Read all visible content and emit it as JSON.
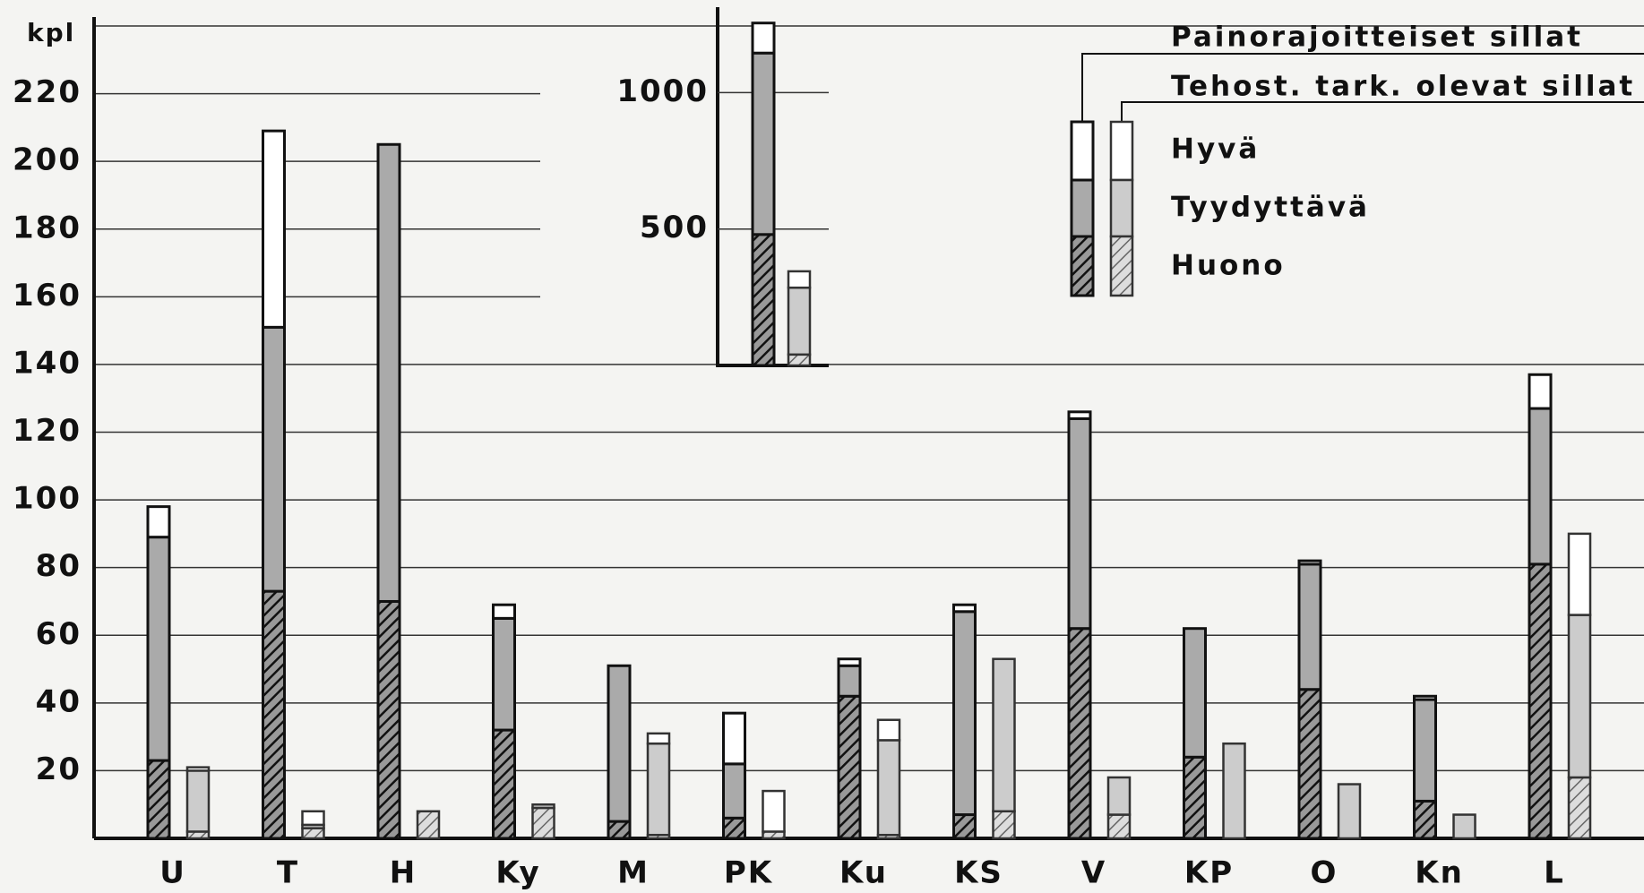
{
  "chart_data": [
    {
      "type": "bar",
      "y_label": "kpl",
      "categories": [
        "U",
        "T",
        "H",
        "Ky",
        "M",
        "PK",
        "Ku",
        "KS",
        "V",
        "KP",
        "O",
        "Kn",
        "L"
      ],
      "stack_names": [
        "Huono",
        "Tyydyttävä",
        "Hyvä"
      ],
      "groups": [
        {
          "name": "Painorajoitteiset sillat",
          "stacks": [
            [
              23,
              73,
              70,
              32,
              5,
              6,
              42,
              7,
              62,
              24,
              44,
              11,
              81
            ],
            [
              66,
              78,
              135,
              33,
              46,
              16,
              9,
              60,
              62,
              38,
              37,
              30,
              46
            ],
            [
              9,
              58,
              0,
              4,
              0,
              15,
              2,
              2,
              2,
              0,
              1,
              1,
              10
            ]
          ]
        },
        {
          "name": "Tehost. tark. olevat sillat",
          "stacks": [
            [
              2,
              3,
              8,
              9,
              1,
              2,
              1,
              8,
              7,
              0,
              0,
              0,
              18
            ],
            [
              18,
              1,
              0,
              1,
              27,
              0,
              28,
              45,
              11,
              28,
              16,
              7,
              48
            ],
            [
              1,
              4,
              0,
              0,
              3,
              12,
              6,
              0,
              0,
              0,
              0,
              0,
              24
            ]
          ]
        }
      ],
      "ylim": [
        0,
        240
      ],
      "yticks": [
        20,
        40,
        60,
        80,
        100,
        120,
        140,
        160,
        180,
        200,
        220
      ],
      "grid": true
    },
    {
      "type": "bar",
      "groups": [
        {
          "stacks": [
            [
              480
            ],
            [
              665
            ],
            [
              110
            ]
          ]
        },
        {
          "stacks": [
            [
              40
            ],
            [
              245
            ],
            [
              60
            ]
          ]
        }
      ],
      "ylim": [
        0,
        1300
      ],
      "yticks": [
        500,
        1000
      ],
      "grid": true
    }
  ]
}
